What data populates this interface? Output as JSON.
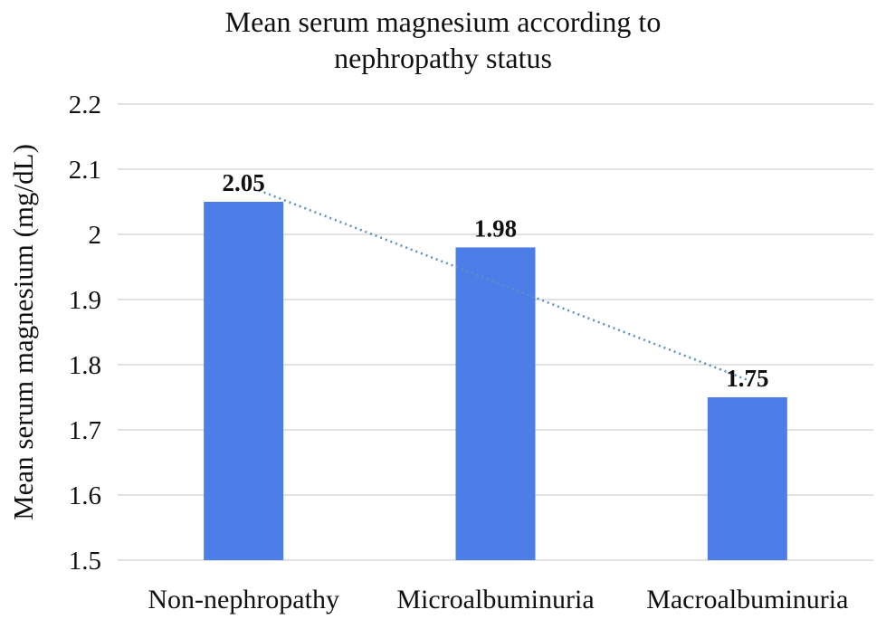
{
  "chart_data": {
    "type": "bar",
    "title_lines": [
      "Mean serum magnesium according to",
      "nephropathy status"
    ],
    "xlabel": "",
    "ylabel": "Mean serum magnesium (mg/dL)",
    "categories": [
      "Non-nephropathy",
      "Microalbuminuria",
      "Macroalbuminuria"
    ],
    "values": [
      2.05,
      1.98,
      1.75
    ],
    "data_labels": [
      "2.05",
      "1.98",
      "1.75"
    ],
    "ylim": [
      1.5,
      2.2
    ],
    "yticks": [
      1.5,
      1.6,
      1.7,
      1.8,
      1.9,
      2.0,
      2.1,
      2.2
    ],
    "ytick_labels": [
      "1.5",
      "1.6",
      "1.7",
      "1.8",
      "1.9",
      "2",
      "2.1",
      "2.2"
    ],
    "grid": true,
    "trendline": "linear dotted",
    "colors": {
      "bar": "#4d7ee8",
      "trendline": "#5a8fc7",
      "grid": "#d9d9d9",
      "text": "#111111"
    }
  }
}
